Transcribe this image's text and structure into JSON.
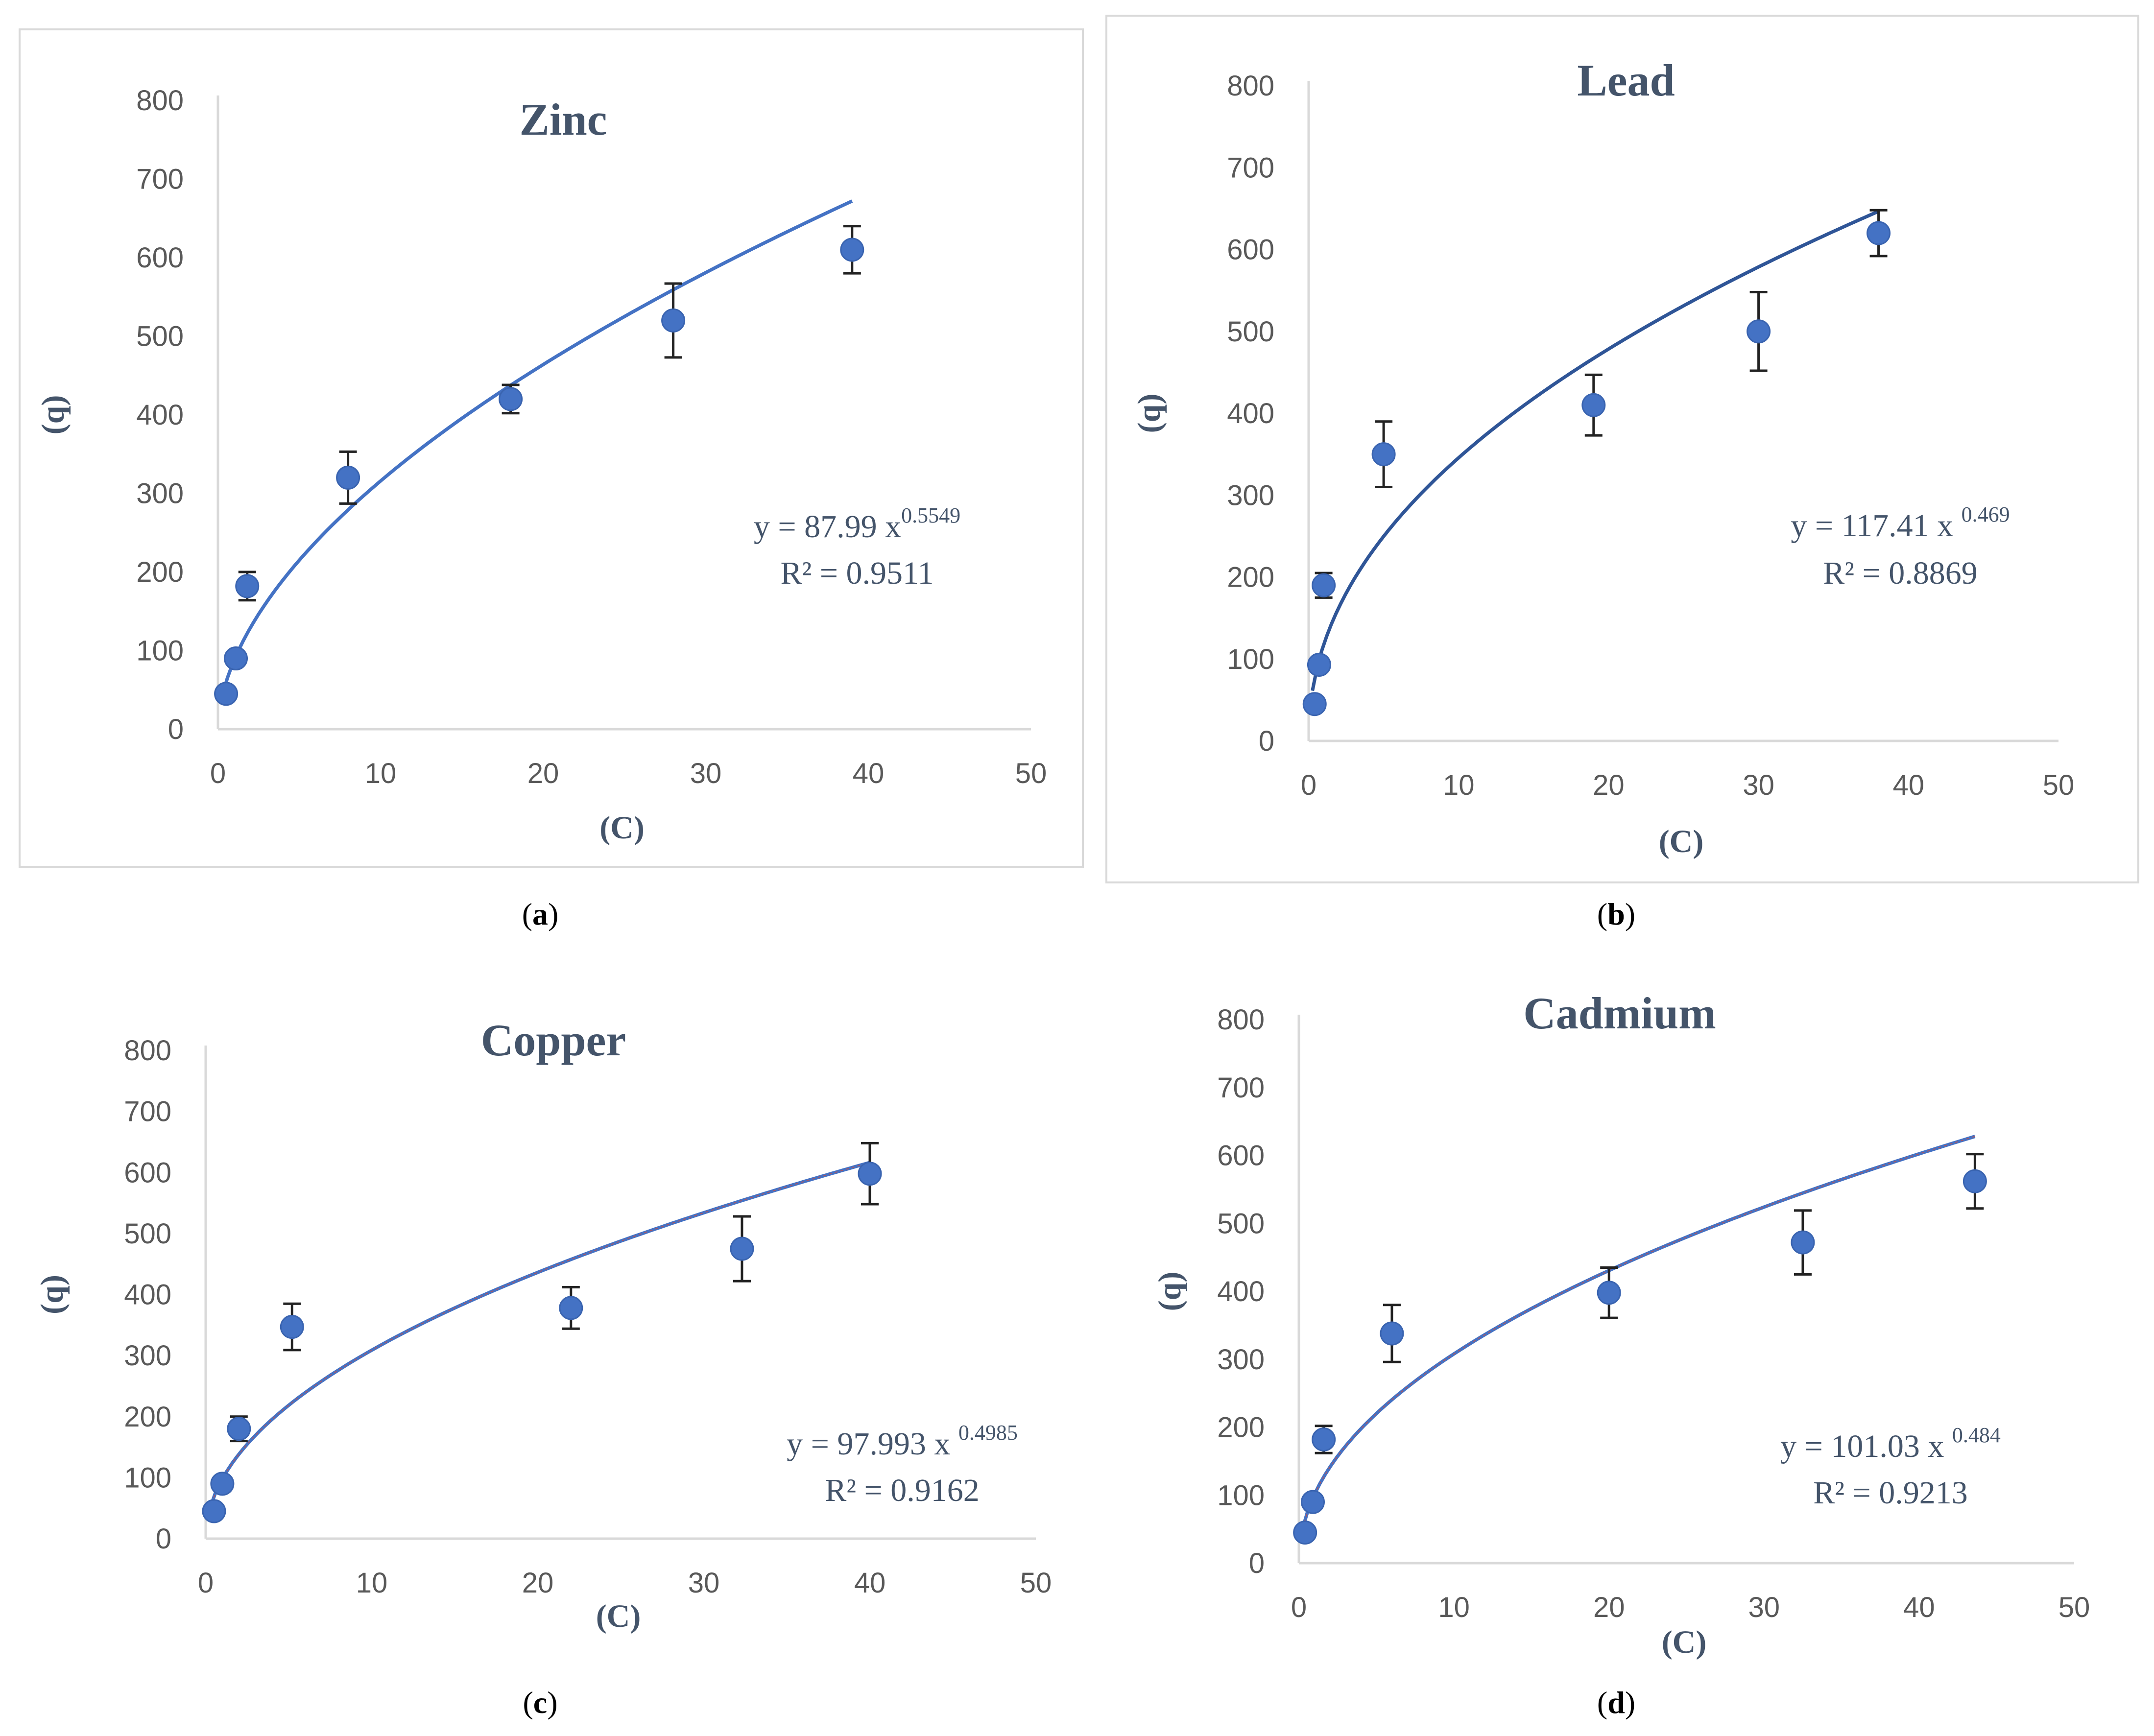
{
  "chart_data": [
    {
      "type": "scatter",
      "title": "Zinc",
      "caption_letter": "a",
      "xlabel": "(C)",
      "ylabel": "(q)",
      "xlim": [
        0,
        50
      ],
      "ylim": [
        0,
        800
      ],
      "xticks": [
        0,
        10,
        20,
        30,
        40,
        50
      ],
      "yticks": [
        0,
        100,
        200,
        300,
        400,
        500,
        600,
        700,
        800
      ],
      "points": [
        {
          "x": 0.5,
          "y": 45,
          "err": 0
        },
        {
          "x": 1.1,
          "y": 90,
          "err": 0
        },
        {
          "x": 1.8,
          "y": 182,
          "err": 18
        },
        {
          "x": 8,
          "y": 320,
          "err": 33
        },
        {
          "x": 18,
          "y": 420,
          "err": 18
        },
        {
          "x": 28,
          "y": 520,
          "err": 47
        },
        {
          "x": 39,
          "y": 610,
          "err": 30
        }
      ],
      "fit": {
        "a": 87.99,
        "b": 0.5549,
        "xmax": 39
      },
      "equation": {
        "lhs": "y = 87.99 x",
        "exponent": "0.5549",
        "r2": "R² = 0.9511"
      },
      "color": "#4472c4"
    },
    {
      "type": "scatter",
      "title": "Lead",
      "caption_letter": "b",
      "xlabel": "(C)",
      "ylabel": "(q)",
      "xlim": [
        0,
        50
      ],
      "ylim": [
        0,
        800
      ],
      "xticks": [
        0,
        10,
        20,
        30,
        40,
        50
      ],
      "yticks": [
        0,
        100,
        200,
        300,
        400,
        500,
        600,
        700,
        800
      ],
      "points": [
        {
          "x": 0.4,
          "y": 45,
          "err": 0
        },
        {
          "x": 0.7,
          "y": 93,
          "err": 0
        },
        {
          "x": 1.0,
          "y": 190,
          "err": 15
        },
        {
          "x": 5,
          "y": 350,
          "err": 40
        },
        {
          "x": 19,
          "y": 410,
          "err": 37
        },
        {
          "x": 30,
          "y": 500,
          "err": 48
        },
        {
          "x": 38,
          "y": 620,
          "err": 28
        }
      ],
      "fit": {
        "a": 117.41,
        "b": 0.469,
        "xmax": 38
      },
      "equation": {
        "lhs": "y = 117.41 x ",
        "exponent": "0.469",
        "r2": "R² = 0.8869"
      },
      "color": "#2f5597"
    },
    {
      "type": "scatter",
      "title": "Copper",
      "caption_letter": "c",
      "xlabel": "(C)",
      "ylabel": "(q)",
      "xlim": [
        0,
        50
      ],
      "ylim": [
        0,
        800
      ],
      "xticks": [
        0,
        10,
        20,
        30,
        40,
        50
      ],
      "yticks": [
        0,
        100,
        200,
        300,
        400,
        500,
        600,
        700,
        800
      ],
      "points": [
        {
          "x": 0.5,
          "y": 45,
          "err": 0
        },
        {
          "x": 1.0,
          "y": 90,
          "err": 0
        },
        {
          "x": 2.0,
          "y": 180,
          "err": 20
        },
        {
          "x": 5.2,
          "y": 347,
          "err": 38
        },
        {
          "x": 22,
          "y": 378,
          "err": 34
        },
        {
          "x": 32.3,
          "y": 475,
          "err": 53
        },
        {
          "x": 40,
          "y": 598,
          "err": 50
        }
      ],
      "fit": {
        "a": 97.993,
        "b": 0.4985,
        "xmax": 40
      },
      "equation": {
        "lhs": "y = 97.993 x ",
        "exponent": "0.4985",
        "r2": "R² = 0.9162"
      },
      "color": "#4472c4"
    },
    {
      "type": "scatter",
      "title": "Cadmium",
      "caption_letter": "d",
      "xlabel": "(C)",
      "ylabel": "(q)",
      "xlim": [
        0,
        50
      ],
      "ylim": [
        0,
        800
      ],
      "xticks": [
        0,
        10,
        20,
        30,
        40,
        50
      ],
      "yticks": [
        0,
        100,
        200,
        300,
        400,
        500,
        600,
        700,
        800
      ],
      "points": [
        {
          "x": 0.4,
          "y": 45,
          "err": 0
        },
        {
          "x": 0.9,
          "y": 90,
          "err": 0
        },
        {
          "x": 1.6,
          "y": 182,
          "err": 20
        },
        {
          "x": 6,
          "y": 338,
          "err": 42
        },
        {
          "x": 20,
          "y": 398,
          "err": 37
        },
        {
          "x": 32.5,
          "y": 472,
          "err": 47
        },
        {
          "x": 43.6,
          "y": 562,
          "err": 40
        }
      ],
      "fit": {
        "a": 101.03,
        "b": 0.484,
        "xmax": 43.6
      },
      "equation": {
        "lhs": "y = 101.03 x ",
        "exponent": "0.484",
        "r2": "R² = 0.9213"
      },
      "color": "#4472c4"
    }
  ]
}
